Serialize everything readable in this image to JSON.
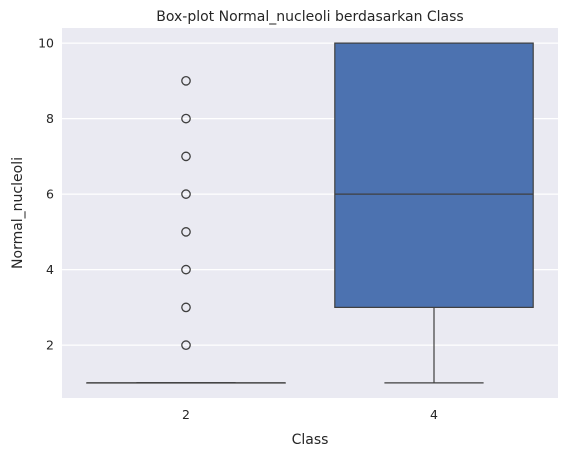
{
  "chart_data": {
    "type": "box",
    "title": "Box-plot Normal_nucleoli berdasarkan Class",
    "xlabel": "Class",
    "ylabel": "Normal_nucleoli",
    "categories": [
      "2",
      "4"
    ],
    "ylim": [
      0.6,
      10.4
    ],
    "yticks": [
      2,
      4,
      6,
      8,
      10
    ],
    "grid": true,
    "boxes": [
      {
        "category": "2",
        "whisker_low": 1,
        "q1": 1,
        "median": 1,
        "q3": 1,
        "whisker_high": 1,
        "outliers": [
          2,
          3,
          4,
          5,
          6,
          7,
          8,
          9
        ]
      },
      {
        "category": "4",
        "whisker_low": 1,
        "q1": 3,
        "median": 6,
        "q3": 10,
        "whisker_high": 10,
        "outliers": []
      }
    ],
    "colors": {
      "background": "#eaeaf2",
      "box_fill": "#4c72b0",
      "line": "#3f3f3f"
    }
  }
}
